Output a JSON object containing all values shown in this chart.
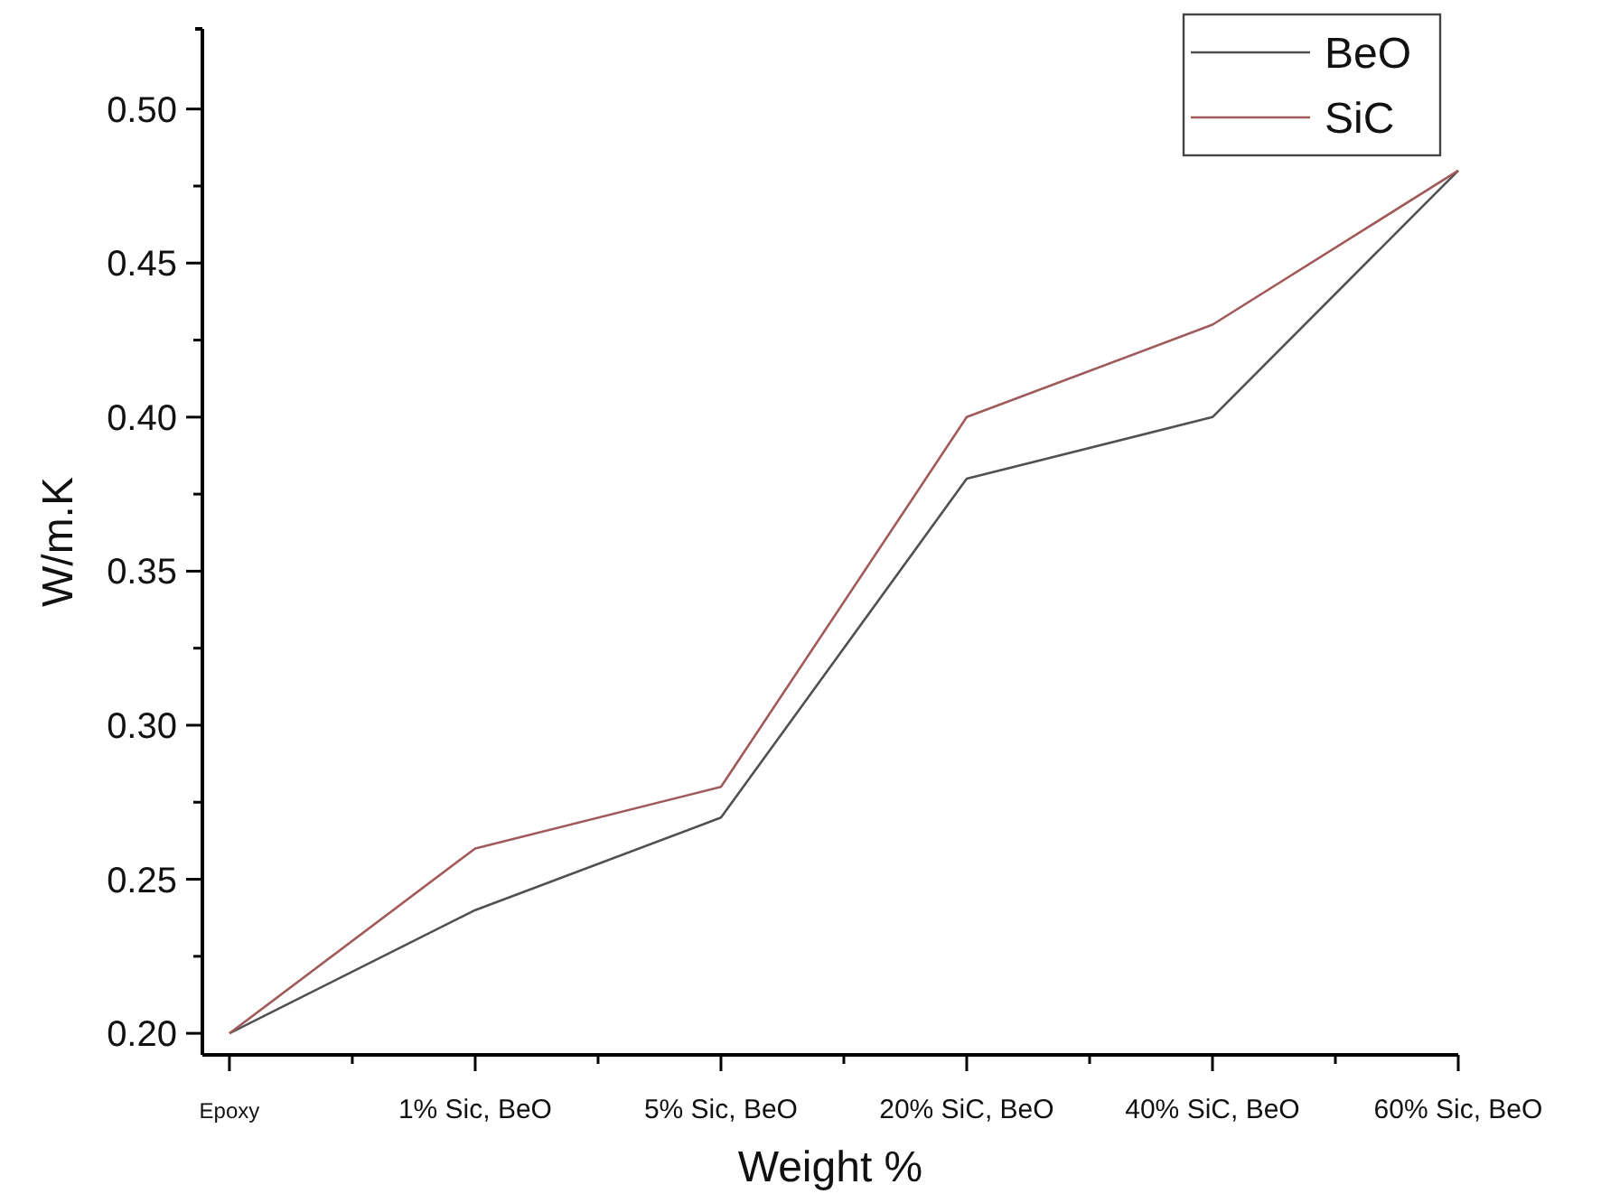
{
  "chart_data": {
    "type": "line",
    "xlabel": "Weight %",
    "ylabel": "W/m.K",
    "categories": [
      "Epoxy",
      "1% Sic, BeO",
      "5% Sic, BeO",
      "20% SiC, BeO",
      "40% SiC, BeO",
      "60% Sic, BeO"
    ],
    "series": [
      {
        "name": "BeO",
        "color": "#505050",
        "values": [
          0.2,
          0.24,
          0.27,
          0.38,
          0.4,
          0.48
        ]
      },
      {
        "name": "SiC",
        "color": "#a05a5a",
        "values": [
          0.2,
          0.26,
          0.28,
          0.4,
          0.43,
          0.48
        ]
      }
    ],
    "ylim": [
      0.193,
      0.526
    ],
    "yticks": [
      {
        "value": 0.2,
        "label": "0.20"
      },
      {
        "value": 0.225,
        "label": null
      },
      0.25,
      {
        "value": 0.275,
        "label": null
      },
      {
        "value": 0.3,
        "label": "0.30"
      },
      {
        "value": 0.325,
        "label": null
      },
      0.35,
      {
        "value": 0.375,
        "label": null
      },
      {
        "value": 0.4,
        "label": "0.40"
      },
      {
        "value": 0.425,
        "label": null
      },
      0.45,
      {
        "value": 0.475,
        "label": null
      },
      {
        "value": 0.5,
        "label": "0.50"
      }
    ],
    "legend": "top right",
    "marker": "none",
    "line_style": "solid",
    "grid": false
  }
}
